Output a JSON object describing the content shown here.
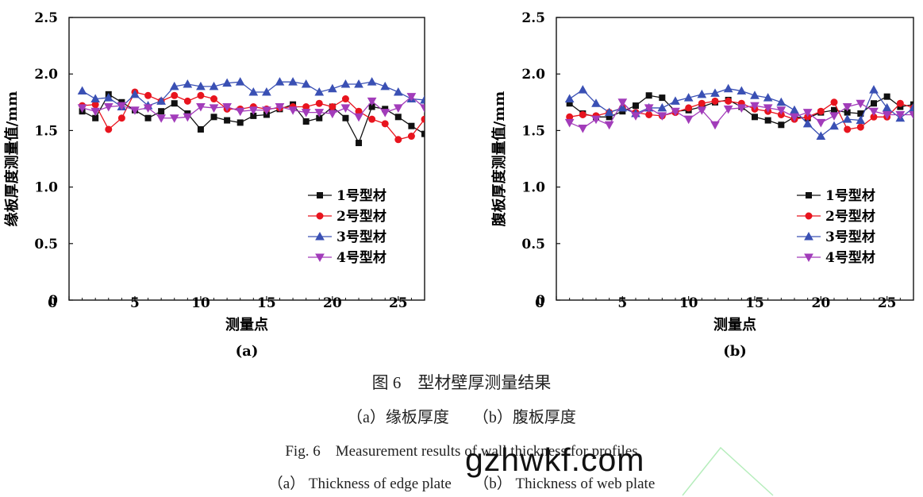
{
  "chart_data": [
    {
      "type": "line",
      "panel_label": "(a)",
      "xlabel": "测量点",
      "ylabel": "缘板厚度测量值/mm",
      "xlim": [
        0,
        27
      ],
      "ylim": [
        0,
        2.5
      ],
      "xticks": [
        0,
        5,
        10,
        15,
        20,
        25
      ],
      "yticks": [
        0,
        0.5,
        1.0,
        1.5,
        2.0,
        2.5
      ],
      "ytick_labels": [
        "0",
        "0.5",
        "1.0",
        "1.5",
        "2.0",
        "2.5"
      ],
      "legend_position": "lower-right",
      "x": [
        1,
        2,
        3,
        4,
        5,
        6,
        7,
        8,
        9,
        10,
        11,
        12,
        13,
        14,
        15,
        16,
        17,
        18,
        19,
        20,
        21,
        22,
        23,
        24,
        25,
        26,
        27
      ],
      "series": [
        {
          "name": "1号型材",
          "color": "#111111",
          "marker": "square",
          "values": [
            1.67,
            1.61,
            1.82,
            1.75,
            1.68,
            1.61,
            1.67,
            1.74,
            1.65,
            1.51,
            1.62,
            1.59,
            1.57,
            1.63,
            1.64,
            1.69,
            1.73,
            1.58,
            1.61,
            1.71,
            1.61,
            1.39,
            1.71,
            1.69,
            1.62,
            1.54,
            1.47
          ]
        },
        {
          "name": "2号型材",
          "color": "#e8141e",
          "marker": "circle",
          "values": [
            1.72,
            1.73,
            1.51,
            1.61,
            1.84,
            1.81,
            1.76,
            1.81,
            1.76,
            1.81,
            1.78,
            1.69,
            1.69,
            1.71,
            1.69,
            1.7,
            1.71,
            1.71,
            1.74,
            1.71,
            1.78,
            1.67,
            1.6,
            1.56,
            1.42,
            1.45,
            1.6
          ]
        },
        {
          "name": "3号型材",
          "color": "#3a50b4",
          "marker": "triangle-up",
          "values": [
            1.85,
            1.78,
            1.79,
            1.71,
            1.82,
            1.72,
            1.76,
            1.89,
            1.91,
            1.89,
            1.89,
            1.92,
            1.93,
            1.84,
            1.84,
            1.93,
            1.93,
            1.91,
            1.84,
            1.87,
            1.91,
            1.91,
            1.93,
            1.89,
            1.84,
            1.78,
            1.77
          ]
        },
        {
          "name": "4号型材",
          "color": "#a23cba",
          "marker": "triangle-down",
          "values": [
            1.7,
            1.67,
            1.71,
            1.72,
            1.68,
            1.7,
            1.61,
            1.61,
            1.62,
            1.71,
            1.7,
            1.71,
            1.67,
            1.68,
            1.68,
            1.71,
            1.68,
            1.66,
            1.66,
            1.65,
            1.7,
            1.62,
            1.76,
            1.66,
            1.7,
            1.8,
            1.7
          ]
        }
      ]
    },
    {
      "type": "line",
      "panel_label": "(b)",
      "xlabel": "测量点",
      "ylabel": "腹板厚度测量值/mm",
      "xlim": [
        0,
        27
      ],
      "ylim": [
        0,
        2.5
      ],
      "xticks": [
        0,
        5,
        10,
        15,
        20,
        25
      ],
      "yticks": [
        0,
        0.5,
        1.0,
        1.5,
        2.0,
        2.5
      ],
      "ytick_labels": [
        "0",
        "0.5",
        "1.0",
        "1.5",
        "2.0",
        "2.5"
      ],
      "legend_position": "lower-right",
      "x": [
        1,
        2,
        3,
        4,
        5,
        6,
        7,
        8,
        9,
        10,
        11,
        12,
        13,
        14,
        15,
        16,
        17,
        18,
        19,
        20,
        21,
        22,
        23,
        24,
        25,
        26,
        27
      ],
      "series": [
        {
          "name": "1号型材",
          "color": "#111111",
          "marker": "square",
          "values": [
            1.74,
            1.65,
            1.62,
            1.62,
            1.67,
            1.72,
            1.81,
            1.79,
            1.67,
            1.68,
            1.71,
            1.75,
            1.77,
            1.71,
            1.62,
            1.59,
            1.55,
            1.62,
            1.61,
            1.66,
            1.68,
            1.66,
            1.65,
            1.74,
            1.8,
            1.71,
            1.73
          ]
        },
        {
          "name": "2号型材",
          "color": "#e8141e",
          "marker": "circle",
          "values": [
            1.62,
            1.64,
            1.63,
            1.66,
            1.7,
            1.66,
            1.64,
            1.63,
            1.66,
            1.7,
            1.74,
            1.76,
            1.76,
            1.74,
            1.69,
            1.67,
            1.64,
            1.6,
            1.62,
            1.67,
            1.75,
            1.51,
            1.53,
            1.62,
            1.62,
            1.74,
            1.7
          ]
        },
        {
          "name": "3号型材",
          "color": "#3a50b4",
          "marker": "triangle-up",
          "values": [
            1.78,
            1.86,
            1.74,
            1.66,
            1.7,
            1.65,
            1.7,
            1.7,
            1.76,
            1.79,
            1.82,
            1.83,
            1.87,
            1.85,
            1.81,
            1.79,
            1.75,
            1.68,
            1.56,
            1.45,
            1.54,
            1.6,
            1.59,
            1.86,
            1.7,
            1.61,
            1.7
          ]
        },
        {
          "name": "4号型材",
          "color": "#a23cba",
          "marker": "triangle-down",
          "values": [
            1.57,
            1.52,
            1.6,
            1.55,
            1.75,
            1.63,
            1.7,
            1.63,
            1.67,
            1.6,
            1.68,
            1.55,
            1.69,
            1.7,
            1.72,
            1.7,
            1.68,
            1.62,
            1.66,
            1.57,
            1.63,
            1.71,
            1.74,
            1.67,
            1.64,
            1.64,
            1.64
          ]
        }
      ]
    }
  ],
  "captions": {
    "zh_title": "图 6　型材壁厚测量结果",
    "zh_sub": "（a）缘板厚度　　（b）腹板厚度",
    "en_title": "Fig. 6　Measurement results of wall thickness for profiles",
    "en_sub": "（a） Thickness of edge plate　　（b） Thickness of web plate"
  },
  "watermark": {
    "text": "gzhwkf.com",
    "color": "#2ecc40"
  }
}
